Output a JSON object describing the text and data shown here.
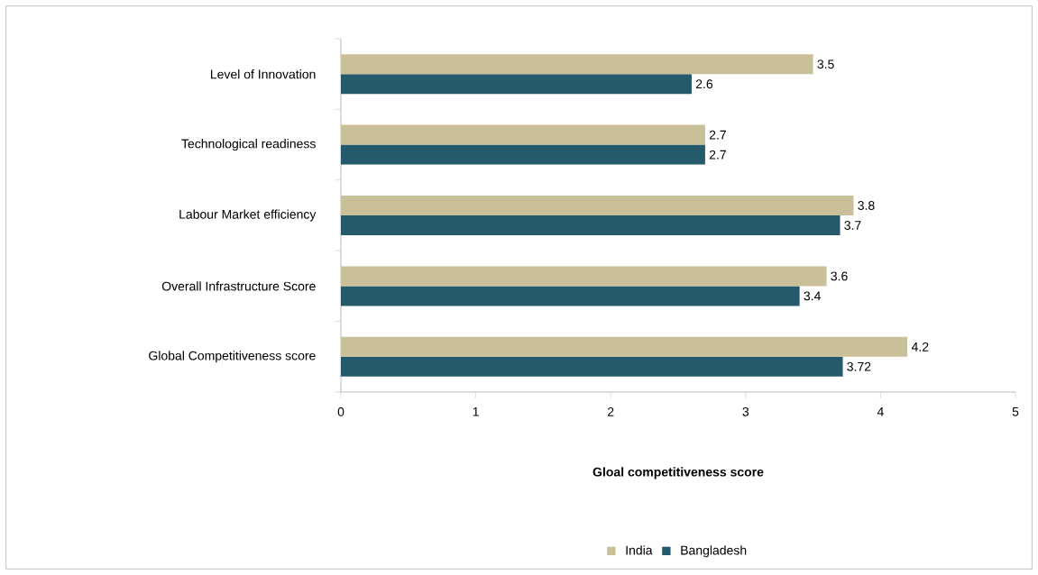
{
  "chart_data": {
    "type": "bar",
    "orientation": "horizontal",
    "categories": [
      "Level of Innovation",
      "Technological readiness",
      "Labour Market efficiency",
      "Overall Infrastructure Score",
      "Global Competitiveness score"
    ],
    "series": [
      {
        "name": "India",
        "color": "#c9bf99",
        "values": [
          3.5,
          2.7,
          3.8,
          3.6,
          4.2
        ]
      },
      {
        "name": "Bangladesh",
        "color": "#245a6b",
        "values": [
          2.6,
          2.7,
          3.7,
          3.4,
          3.72
        ]
      }
    ],
    "xlim": [
      0,
      5
    ],
    "xticks": [
      0,
      1,
      2,
      3,
      4,
      5
    ],
    "xlabel": "Gloal competitiveness score",
    "data_labels": true,
    "legend": "bottom"
  }
}
